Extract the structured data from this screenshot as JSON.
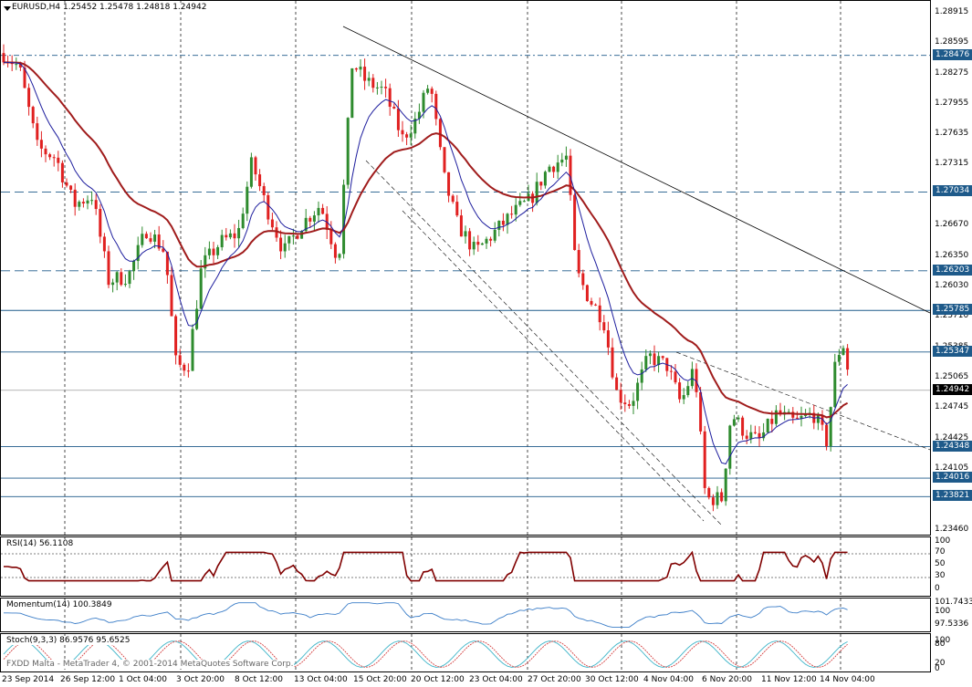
{
  "header": {
    "symbol_line": "EURUSD,H4  1.25452 1.25478 1.24818 1.24942"
  },
  "copyright": "FXDD Malta - MetaTrader 4, © 2001-2014 MetaQuotes Software Corp.",
  "colors": {
    "bull": "#2e8b2e",
    "bear": "#e02020",
    "ma_slow": "#a01c1c",
    "ma_fast": "#1e1e9e",
    "hline": "#1e5a8a",
    "rsi": "#800000",
    "momentum": "#3c7ec8",
    "stoch_main": "#3cb4c8",
    "stoch_signal": "#d03030"
  },
  "price_axis": {
    "ticks": [
      "1.28915",
      "1.28595",
      "1.28275",
      "1.27955",
      "1.27635",
      "1.27315",
      "1.26990",
      "1.26670",
      "1.26350",
      "1.26030",
      "1.25710",
      "1.25385",
      "1.25065",
      "1.24745",
      "1.24425",
      "1.24105",
      "1.23780",
      "1.23460"
    ],
    "levels": [
      "1.28476",
      "1.27034",
      "1.26203",
      "1.25785",
      "1.25347",
      "1.24942",
      "1.24348",
      "1.24016",
      "1.23821"
    ],
    "current": "1.24942"
  },
  "time_axis": [
    "23 Sep 2014",
    "26 Sep 12:00",
    "1 Oct 04:00",
    "3 Oct 20:00",
    "8 Oct 12:00",
    "13 Oct 04:00",
    "15 Oct 20:00",
    "20 Oct 12:00",
    "23 Oct 04:00",
    "27 Oct 20:00",
    "30 Oct 12:00",
    "4 Nov 04:00",
    "6 Nov 20:00",
    "11 Nov 12:00",
    "14 Nov 04:00"
  ],
  "rsi": {
    "label": "RSI(14) 56.1108",
    "ticks": [
      "100",
      "70",
      "50",
      "30",
      "0"
    ]
  },
  "momentum": {
    "label": "Momentum(14) 100.3849",
    "ticks": [
      "101.7433",
      "100",
      "97.5336"
    ]
  },
  "stoch": {
    "label": "Stoch(9,3,3) 86.9576 95.6525",
    "ticks": [
      "100",
      "80",
      "20",
      "0"
    ]
  }
}
